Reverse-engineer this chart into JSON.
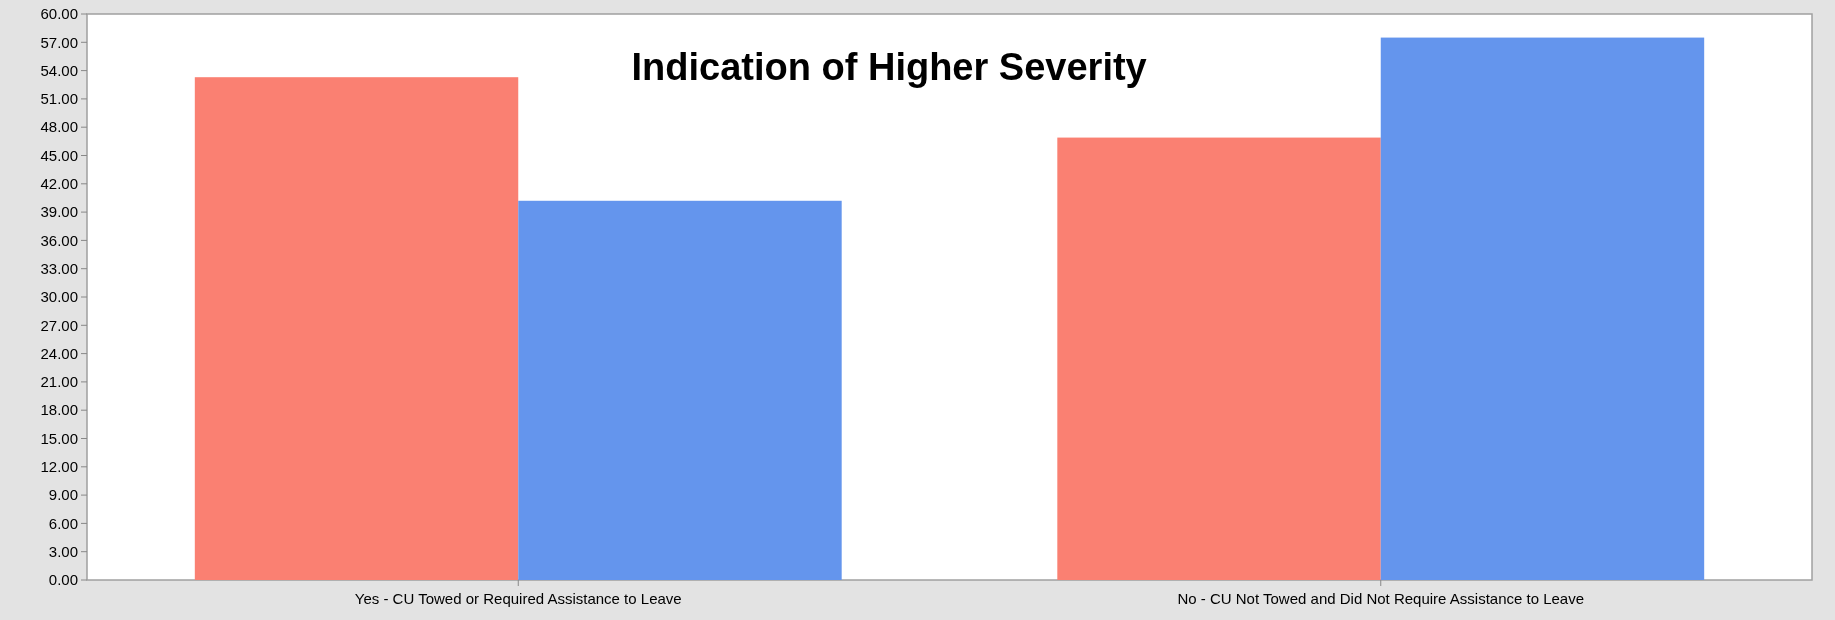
{
  "chart_data": {
    "type": "bar",
    "title": "Indication of Higher Severity",
    "categories": [
      "Yes - CU Towed or Required Assistance to Leave",
      "No - CU Not Towed and Did Not Require Assistance to Leave"
    ],
    "series": [
      {
        "color": "#fa8072",
        "values": [
          53.3,
          46.9
        ]
      },
      {
        "color": "#6495ed",
        "values": [
          40.2,
          57.5
        ]
      }
    ],
    "ylim": [
      0,
      60
    ],
    "yticks": [
      {
        "value": 0,
        "label": "0.00"
      },
      {
        "value": 3,
        "label": "3.00"
      },
      {
        "value": 6,
        "label": "6.00"
      },
      {
        "value": 9,
        "label": "9.00"
      },
      {
        "value": 12,
        "label": "12.00"
      },
      {
        "value": 15,
        "label": "15.00"
      },
      {
        "value": 18,
        "label": "18.00"
      },
      {
        "value": 21,
        "label": "21.00"
      },
      {
        "value": 24,
        "label": "24.00"
      },
      {
        "value": 27,
        "label": "27.00"
      },
      {
        "value": 30,
        "label": "30.00"
      },
      {
        "value": 33,
        "label": "33.00"
      },
      {
        "value": 36,
        "label": "36.00"
      },
      {
        "value": 39,
        "label": "39.00"
      },
      {
        "value": 42,
        "label": "42.00"
      },
      {
        "value": 45,
        "label": "45.00"
      },
      {
        "value": 48,
        "label": "48.00"
      },
      {
        "value": 51,
        "label": "51.00"
      },
      {
        "value": 54,
        "label": "54.00"
      },
      {
        "value": 57,
        "label": "57.00"
      },
      {
        "value": 60,
        "label": "60.00"
      }
    ],
    "grid": false
  }
}
